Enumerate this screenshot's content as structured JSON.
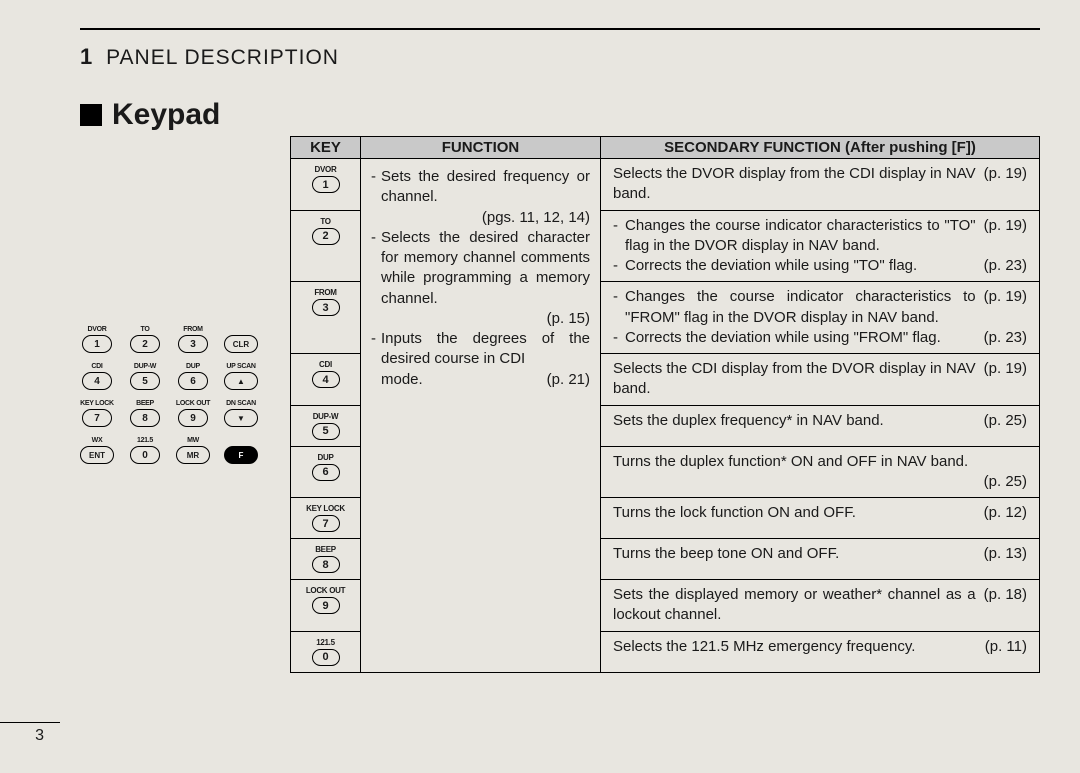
{
  "section": {
    "number": "1",
    "title": "PANEL DESCRIPTION"
  },
  "heading": "Keypad",
  "page_number": "3",
  "keypad": {
    "rows": [
      [
        {
          "lbl": "DVOR",
          "k": "1"
        },
        {
          "lbl": "TO",
          "k": "2"
        },
        {
          "lbl": "FROM",
          "k": "3"
        },
        {
          "lbl": "",
          "k": "CLR",
          "wide": true
        }
      ],
      [
        {
          "lbl": "CDI",
          "k": "4"
        },
        {
          "lbl": "DUP-W",
          "k": "5"
        },
        {
          "lbl": "DUP",
          "k": "6"
        },
        {
          "lbl": "UP SCAN",
          "k": "▲",
          "wide": true
        }
      ],
      [
        {
          "lbl": "KEY LOCK",
          "k": "7"
        },
        {
          "lbl": "BEEP",
          "k": "8"
        },
        {
          "lbl": "LOCK OUT",
          "k": "9"
        },
        {
          "lbl": "DN SCAN",
          "k": "▼",
          "wide": true
        }
      ],
      [
        {
          "lbl": "WX",
          "k": "ENT",
          "wide": true
        },
        {
          "lbl": "121.5",
          "k": "0"
        },
        {
          "lbl": "MW",
          "k": "MR",
          "wide": true
        },
        {
          "lbl": "",
          "k": "F",
          "wide": true,
          "black": true
        }
      ]
    ]
  },
  "table": {
    "headers": {
      "key": "KEY",
      "function": "FUNCTION",
      "secondary": "SECONDARY FUNCTION (After pushing [F])"
    },
    "function_cell": {
      "items": [
        {
          "text": "Sets the desired fre­quency or channel.",
          "page": "(pgs. 11, 12, 14)"
        },
        {
          "text": "Selects the desired char­acter for memory channel comments while program­ming a memory channel.",
          "page": "(p. 15)"
        },
        {
          "text": "Inputs the degrees of the desired course in CDI mode.",
          "page_inline": "(p. 21)"
        }
      ]
    },
    "rows": [
      {
        "lbl": "DVOR",
        "k": "1",
        "sec": [
          {
            "text": "Selects the DVOR display from the CDI display in NAV band.",
            "page": "(p. 19)",
            "oneline": true
          }
        ]
      },
      {
        "lbl": "TO",
        "k": "2",
        "sec": [
          {
            "dash": true,
            "text": "Changes the course indicator characteristics to \"TO\" flag in the DVOR display in NAV band.",
            "page": "(p. 19)"
          },
          {
            "dash": true,
            "text": "Corrects the deviation while using \"TO\" flag.",
            "page": "(p. 23)"
          }
        ]
      },
      {
        "lbl": "FROM",
        "k": "3",
        "sec": [
          {
            "dash": true,
            "text": "Changes the course indicator characteristics to \"FROM\" flag in the DVOR display in NAV band.",
            "page": "(p. 19)"
          },
          {
            "dash": true,
            "text": "Corrects the deviation while using \"FROM\" flag.",
            "page": "(p. 23)"
          }
        ]
      },
      {
        "lbl": "CDI",
        "k": "4",
        "sec": [
          {
            "text": "Selects the CDI display from the DVOR display in NAV band.",
            "page": "(p. 19)",
            "oneline": true
          }
        ]
      },
      {
        "lbl": "DUP-W",
        "k": "5",
        "sec": [
          {
            "text": "Sets the duplex frequency* in NAV band.",
            "page": "(p. 25)",
            "oneline": true
          }
        ]
      },
      {
        "lbl": "DUP",
        "k": "6",
        "sec": [
          {
            "text": "Turns the duplex function* ON and OFF in NAV band.",
            "page": "(p. 25)",
            "twoLine": true
          }
        ]
      },
      {
        "lbl": "KEY LOCK",
        "k": "7",
        "sec": [
          {
            "text": "Turns the lock function ON and OFF.",
            "page": "(p. 12)",
            "oneline": true
          }
        ]
      },
      {
        "lbl": "BEEP",
        "k": "8",
        "sec": [
          {
            "text": "Turns the beep tone ON and OFF.",
            "page": "(p. 13)",
            "oneline": true
          }
        ]
      },
      {
        "lbl": "LOCK OUT",
        "k": "9",
        "sec": [
          {
            "text": "Sets the displayed memory or weather* channel as a lockout channel.",
            "page": "(p. 18)",
            "oneline": true
          }
        ]
      },
      {
        "lbl": "121.5",
        "k": "0",
        "sec": [
          {
            "text": "Selects the 121.5 MHz emergency frequency.",
            "page": "(p. 11)",
            "oneline": true
          }
        ]
      }
    ]
  }
}
